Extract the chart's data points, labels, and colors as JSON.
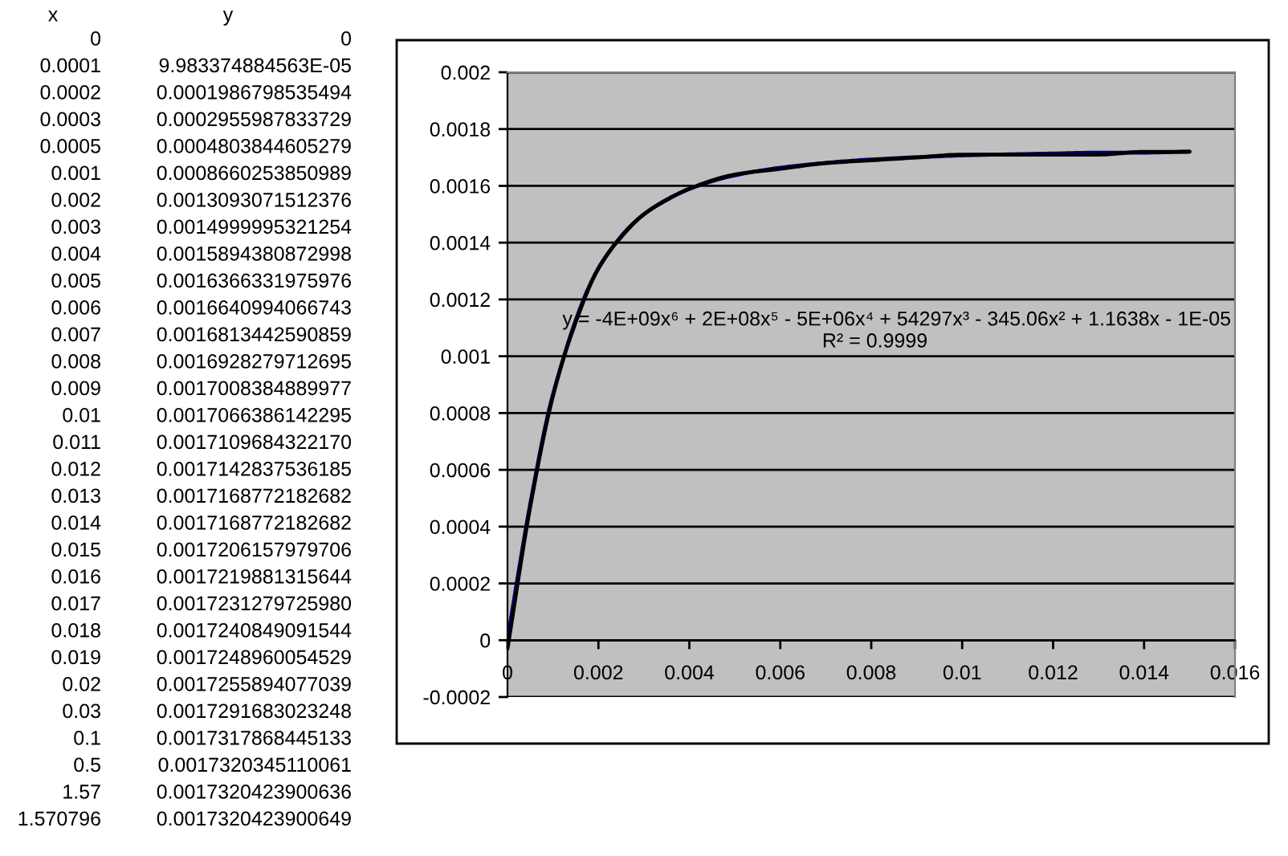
{
  "chart_data": {
    "type": "line",
    "x": [
      0,
      0.0001,
      0.0002,
      0.0003,
      0.0005,
      0.001,
      0.002,
      0.003,
      0.004,
      0.005,
      0.006,
      0.007,
      0.008,
      0.009,
      0.01,
      0.011,
      0.012,
      0.013,
      0.014,
      0.015
    ],
    "series": [
      {
        "color": "#000080",
        "values": [
          0,
          0.0001,
          0.000199,
          0.000296,
          0.00048,
          0.000866,
          0.001309,
          0.0015,
          0.001589,
          0.001637,
          0.001664,
          0.001681,
          0.001693,
          0.001701,
          0.001707,
          0.001711,
          0.001714,
          0.001717,
          0.001717,
          0.001721
        ]
      },
      {
        "type": "line",
        "color": "#000000",
        "x": [
          0,
          0.0005,
          0.001,
          0.0015,
          0.002,
          0.0025,
          0.003,
          0.0035,
          0.004,
          0.005,
          0.006,
          0.007,
          0.008,
          0.009,
          0.01,
          0.011,
          0.012,
          0.013,
          0.014,
          0.015
        ],
        "values": [
          -3e-05,
          0.00047,
          0.00086,
          0.00112,
          0.00131,
          0.00142,
          0.0015,
          0.00155,
          0.00159,
          0.00164,
          0.00166,
          0.00168,
          0.00169,
          0.0017,
          0.00171,
          0.00171,
          0.00171,
          0.00171,
          0.00172,
          0.00172
        ]
      }
    ],
    "xlim": [
      0,
      0.016
    ],
    "xticks": [
      0,
      0.002,
      0.004,
      0.006,
      0.008,
      0.01,
      0.012,
      0.014,
      0.016
    ],
    "ylim": [
      -0.0002,
      0.002
    ],
    "yticks": [
      -0.0002,
      0,
      0.0002,
      0.0004,
      0.0006,
      0.0008,
      0.001,
      0.0012,
      0.0014,
      0.0016,
      0.0018,
      0.002
    ],
    "grid": "y",
    "annotations": [
      "y = -4E+09x⁶ + 2E+08x⁵ - 5E+06x⁴ + 54297x³ - 345.06x² + 1.1638x - 1E-05",
      "R² = 0.9999",
      "x",
      "y",
      "0",
      "0",
      "0.0001",
      "9.983374884563E-05",
      "0.0002",
      "0.0001986798535494",
      "0.0003",
      "0.0002955987833729",
      "0.0005",
      "0.0004803844605279",
      "0.001",
      "0.0008660253850989",
      "0.002",
      "0.0013093071512376",
      "0.003",
      "0.0014999995321254",
      "0.004",
      "0.0015894380872998",
      "0.005",
      "0.0016366331975976",
      "0.006",
      "0.0016640994066743",
      "0.007",
      "0.0016813442590859",
      "0.008",
      "0.0016928279712695",
      "0.009",
      "0.0017008384889977",
      "0.01",
      "0.0017066386142295",
      "0.011",
      "0.0017109684322170",
      "0.012",
      "0.0017142837536185",
      "0.013",
      "0.0017168772182682",
      "0.014",
      "0.0017168772182682",
      "0.015",
      "0.0017206157979706",
      "0.016",
      "0.0017219881315644",
      "0.017",
      "0.0017231279725980",
      "0.018",
      "0.0017240849091544",
      "0.019",
      "0.0017248960054529",
      "0.02",
      "0.0017255894077039",
      "0.03",
      "0.0017291683023248",
      "0.1",
      "0.0017317868445133",
      "0.5",
      "0.0017320345110061",
      "1.57",
      "0.0017320423900636",
      "1.570796",
      "0.0017320423900649"
    ]
  }
}
